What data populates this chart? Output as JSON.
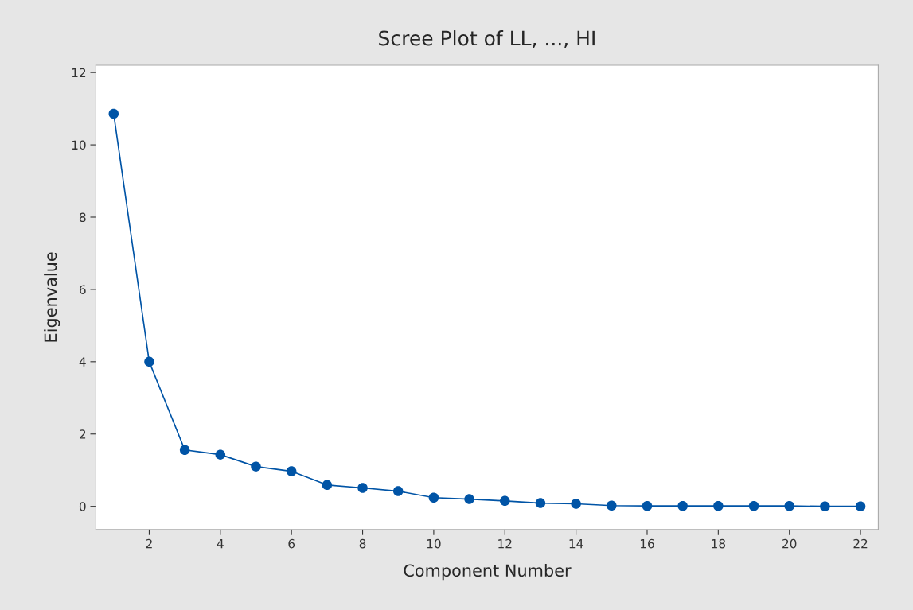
{
  "chart_data": {
    "type": "line",
    "title": "Scree Plot of LL, ..., HI",
    "xlabel": "Component Number",
    "ylabel": "Eigenvalue",
    "x": [
      1,
      2,
      3,
      4,
      5,
      6,
      7,
      8,
      9,
      10,
      11,
      12,
      13,
      14,
      15,
      16,
      17,
      18,
      19,
      20,
      21,
      22
    ],
    "series": [
      {
        "color": "#0054a6",
        "values": [
          10.86,
          4.0,
          1.56,
          1.43,
          1.1,
          0.97,
          0.59,
          0.51,
          0.42,
          0.24,
          0.2,
          0.15,
          0.09,
          0.07,
          0.02,
          0.01,
          0.01,
          0.01,
          0.01,
          0.01,
          0.0,
          0.0
        ]
      }
    ],
    "xlim": [
      0.5,
      22.5
    ],
    "xticks": [
      2,
      4,
      6,
      8,
      10,
      12,
      14,
      16,
      18,
      20,
      22
    ],
    "ylim": [
      -0.64,
      12.2
    ],
    "yticks": [
      0,
      2,
      4,
      6,
      8,
      10,
      12
    ],
    "marker": "circle",
    "line_style": "solid",
    "grid": false,
    "legend": false
  }
}
